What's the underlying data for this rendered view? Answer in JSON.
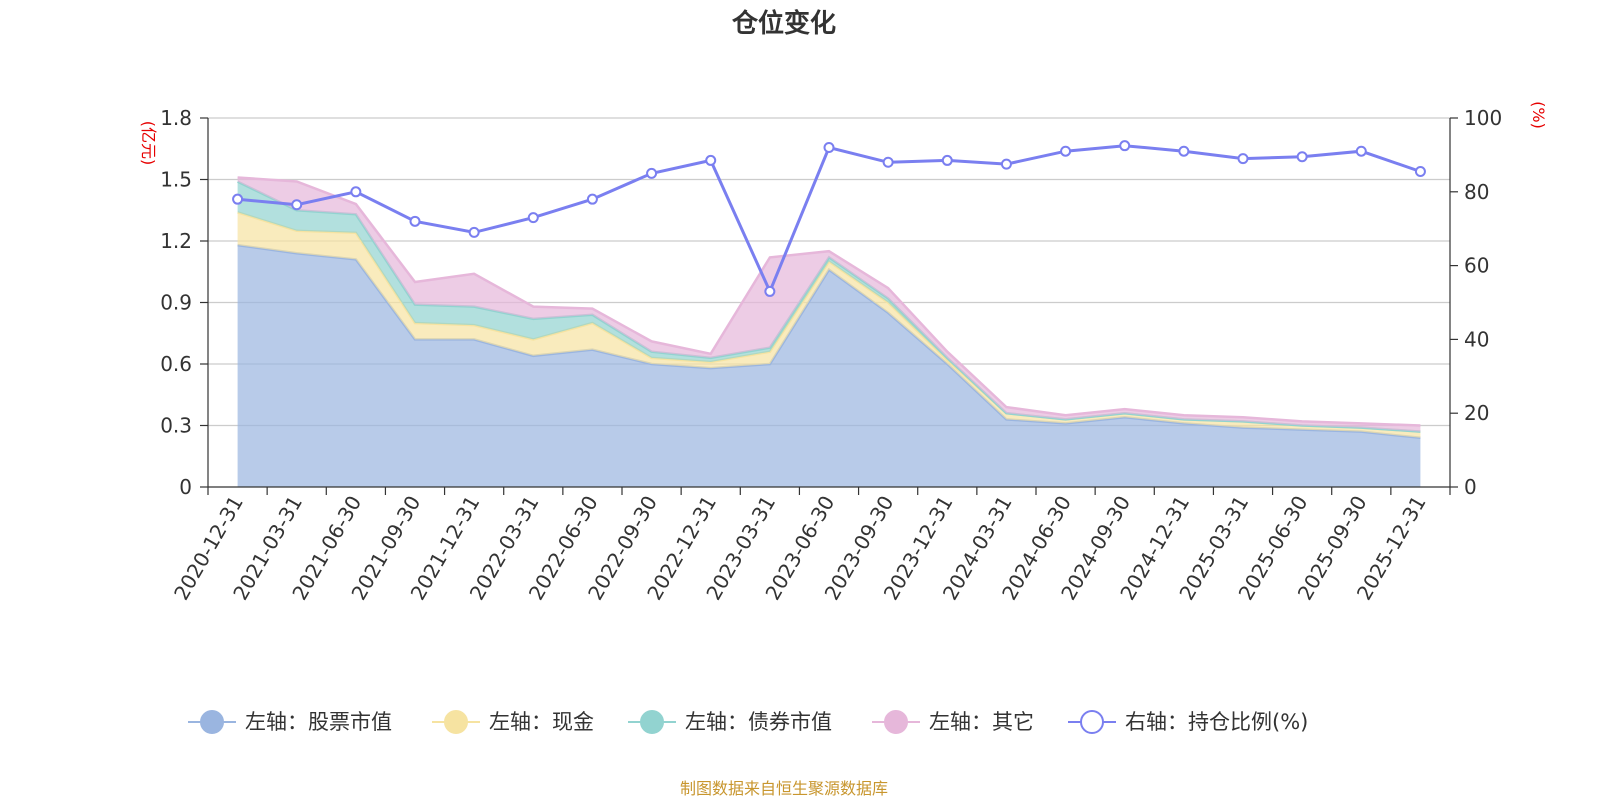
{
  "chart_data": {
    "type": "area",
    "title": "仓位变化",
    "left_axis_unit": "(亿元)",
    "right_axis_unit": "(%)",
    "left_ylim": [
      0,
      1.8
    ],
    "left_ticks": [
      "0",
      "0.3",
      "0.6",
      "0.9",
      "1.2",
      "1.5",
      "1.8"
    ],
    "right_ylim": [
      0,
      100
    ],
    "right_ticks": [
      "0",
      "20",
      "40",
      "60",
      "80",
      "100"
    ],
    "categories": [
      "2020-12-31",
      "2021-03-31",
      "2021-06-30",
      "2021-09-30",
      "2021-12-31",
      "2022-03-31",
      "2022-06-30",
      "2022-09-30",
      "2022-12-31",
      "2023-03-31",
      "2023-06-30",
      "2023-09-30",
      "2023-12-31",
      "2024-03-31",
      "2024-06-30",
      "2024-09-30",
      "2024-12-31",
      "2025-03-31",
      "2025-06-30",
      "2025-09-30",
      "2025-12-31"
    ],
    "stacked_series": [
      {
        "name": "左轴：股票市值",
        "color": "#9ab5e0",
        "values": [
          1.18,
          1.14,
          1.11,
          0.72,
          0.72,
          0.64,
          0.67,
          0.6,
          0.58,
          0.6,
          1.06,
          0.85,
          0.6,
          0.33,
          0.31,
          0.34,
          0.31,
          0.29,
          0.28,
          0.27,
          0.24
        ]
      },
      {
        "name": "左轴：现金",
        "color": "#f6e3a1",
        "values": [
          0.16,
          0.11,
          0.13,
          0.08,
          0.07,
          0.08,
          0.13,
          0.03,
          0.03,
          0.06,
          0.04,
          0.05,
          0.02,
          0.03,
          0.02,
          0.02,
          0.02,
          0.03,
          0.02,
          0.02,
          0.03
        ]
      },
      {
        "name": "左轴：债券市值",
        "color": "#92d3d0",
        "values": [
          0.15,
          0.1,
          0.09,
          0.09,
          0.09,
          0.1,
          0.04,
          0.03,
          0.02,
          0.02,
          0.02,
          0.02,
          0.01,
          0.0,
          0.0,
          0.0,
          0.0,
          0.0,
          0.0,
          0.0,
          0.0
        ]
      },
      {
        "name": "左轴：其它",
        "color": "#e6b7da",
        "values": [
          0.02,
          0.14,
          0.05,
          0.11,
          0.16,
          0.06,
          0.03,
          0.05,
          0.02,
          0.44,
          0.03,
          0.05,
          0.03,
          0.03,
          0.02,
          0.02,
          0.02,
          0.02,
          0.02,
          0.02,
          0.03
        ]
      }
    ],
    "line_series": {
      "name": "右轴：持仓比例(%)",
      "color": "#7a7ff0",
      "values": [
        78,
        76.5,
        80,
        72,
        69,
        73,
        78,
        85,
        88.5,
        53,
        92,
        88,
        88.5,
        87.5,
        91,
        92.5,
        91,
        89,
        89.5,
        91,
        85.5
      ]
    }
  },
  "source_text": "制图数据来自恒生聚源数据库"
}
